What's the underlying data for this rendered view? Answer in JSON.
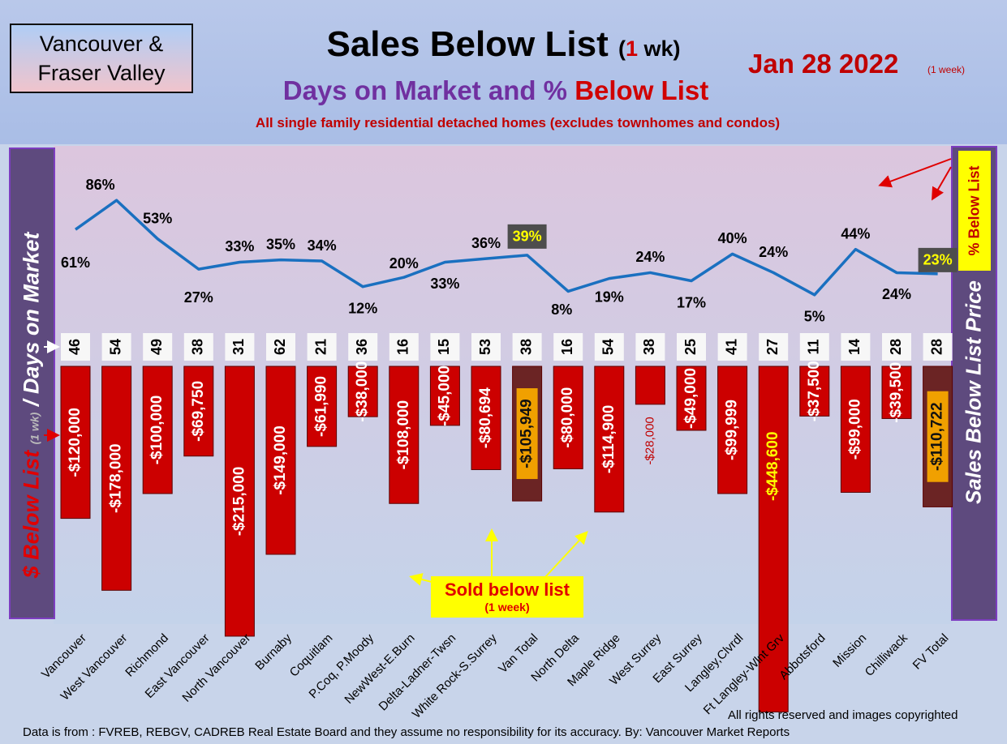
{
  "header": {
    "region_line1": "Vancouver &",
    "region_line2": "Fraser Valley",
    "title_main": "Sales Below List ",
    "title_paren_open": "(",
    "title_paren_num": "1",
    "title_paren_rest": " wk)",
    "subtitle_part1": "Days on Market and % ",
    "subtitle_part2": "Below List",
    "description": "All single family residential detached homes (excludes townhomes and condos)",
    "date": "Jan 28  2022",
    "date_note": "(1 week)"
  },
  "left_axis": {
    "part1": "$ Below List ",
    "part2": "(1 wk)",
    "part3": " / Days on Market"
  },
  "right_axis": {
    "label": "Sales Below List Price",
    "pct_label": "% Below List"
  },
  "callout": {
    "line1": "Sold below list",
    "line2": "(1 week)"
  },
  "footer": {
    "copyright": "All rights reserved and  images copyrighted",
    "source": "Data is from : FVREB, REBGV, CADREB Real Estate Board and they assume no responsibility for its accuracy. By: Vancouver Market Reports"
  },
  "colors": {
    "bar": "#cc0000",
    "total_bar": "#6b2424",
    "line": "#1a70c0",
    "highlight_label": "#ffff00"
  },
  "chart_data": {
    "type": "bar",
    "categories": [
      "Vancouver",
      "West Vancouver",
      "Richmond",
      "East Vancouver",
      "North Vancouver",
      "Burnaby",
      "Coquitlam",
      "P.Coq, P.Moody",
      "NewWest-E.Burn",
      "Delta-Ladner-Twsn",
      "White Rock-S.Surrey",
      "Van Total",
      "North Delta",
      "Maple Ridge",
      "West Surrey",
      "East Surrey",
      "Langley,Clvrdl",
      "Ft Langley-Wlnt Grv",
      "Abbotsford",
      "Mission",
      "Chilliwack",
      "FV Total"
    ],
    "series": [
      {
        "name": "$ Below List",
        "type": "bar",
        "values": [
          -120000,
          -178000,
          -100000,
          -69750,
          -215000,
          -149000,
          -61990,
          -38000,
          -108000,
          -45000,
          -80694,
          -105949,
          -80000,
          -114900,
          -28000,
          -49000,
          -99999,
          -448600,
          -37500,
          -99000,
          -39500,
          -110722
        ],
        "labels": [
          "-$120,000",
          "-$178,000",
          "-$100,000",
          "-$69,750",
          "-$215,000",
          "-$149,000",
          "-$61,990",
          "-$38,000",
          "-$108,000",
          "-$45,000",
          "-$80,694",
          "-$105,949",
          "-$80,000",
          "-$114,900",
          "-$28,000",
          "-$49,000",
          "-$99,999",
          "-$448,600",
          "-$37,500",
          "-$99,000",
          "-$39,500",
          "-$110,722"
        ]
      },
      {
        "name": "Days on Market",
        "type": "label",
        "values": [
          46,
          54,
          49,
          38,
          31,
          62,
          21,
          36,
          16,
          15,
          53,
          38,
          16,
          54,
          38,
          25,
          41,
          27,
          11,
          14,
          28,
          28
        ]
      },
      {
        "name": "% Below List",
        "type": "line",
        "values": [
          61,
          86,
          53,
          27,
          33,
          35,
          34,
          12,
          20,
          33,
          36,
          39,
          8,
          19,
          24,
          17,
          40,
          24,
          5,
          44,
          24,
          23
        ],
        "labels": [
          "61%",
          "86%",
          "53%",
          "27%",
          "33%",
          "35%",
          "34%",
          "12%",
          "20%",
          "33%",
          "36%",
          "39%",
          "8%",
          "19%",
          "24%",
          "17%",
          "40%",
          "24%",
          "5%",
          "44%",
          "24%",
          "23%"
        ]
      }
    ],
    "totals": [
      "Van Total",
      "FV Total"
    ]
  }
}
